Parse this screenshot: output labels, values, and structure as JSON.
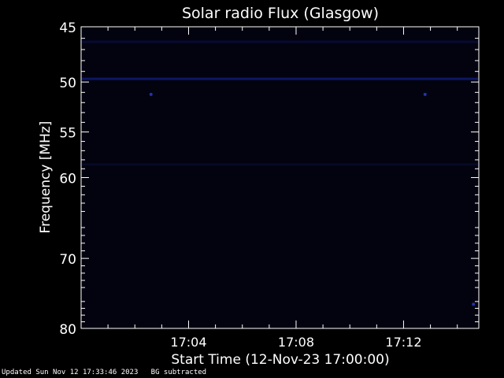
{
  "chart_data": {
    "type": "heatmap",
    "title": "Solar radio Flux (Glasgow)",
    "xlabel": "Start Time (12-Nov-23 17:00:00)",
    "ylabel": "Frequency [MHz]",
    "x_unit": "minutes after 17:00:00",
    "xlim": [
      0.0,
      14.8
    ],
    "ylim": [
      45,
      80
    ],
    "y_scale": "log",
    "y_inverted": true,
    "x_ticks": [
      {
        "value": 4,
        "label": "17:04"
      },
      {
        "value": 8,
        "label": "17:08"
      },
      {
        "value": 12,
        "label": "17:12"
      }
    ],
    "y_ticks": [
      {
        "value": 45,
        "label": "45"
      },
      {
        "value": 50,
        "label": "50"
      },
      {
        "value": 55,
        "label": "55"
      },
      {
        "value": 60,
        "label": "60"
      },
      {
        "value": 70,
        "label": "70"
      },
      {
        "value": 80,
        "label": "80"
      }
    ],
    "background_color": "#030310",
    "band_color": "#101a6a",
    "bands": [
      {
        "freq_mhz": 49.7,
        "intensity": 0.9
      },
      {
        "freq_mhz": 46.3,
        "intensity": 0.4
      },
      {
        "freq_mhz": 58.5,
        "intensity": 0.25
      }
    ],
    "bright_spots": [
      {
        "t_min": 2.6,
        "freq_mhz": 51.2
      },
      {
        "t_min": 12.8,
        "freq_mhz": 51.2
      },
      {
        "t_min": 14.6,
        "freq_mhz": 76.4
      }
    ]
  },
  "footer": {
    "updated": "Updated Sun Nov 12 17:33:46 2023",
    "note": "BG subtracted"
  }
}
